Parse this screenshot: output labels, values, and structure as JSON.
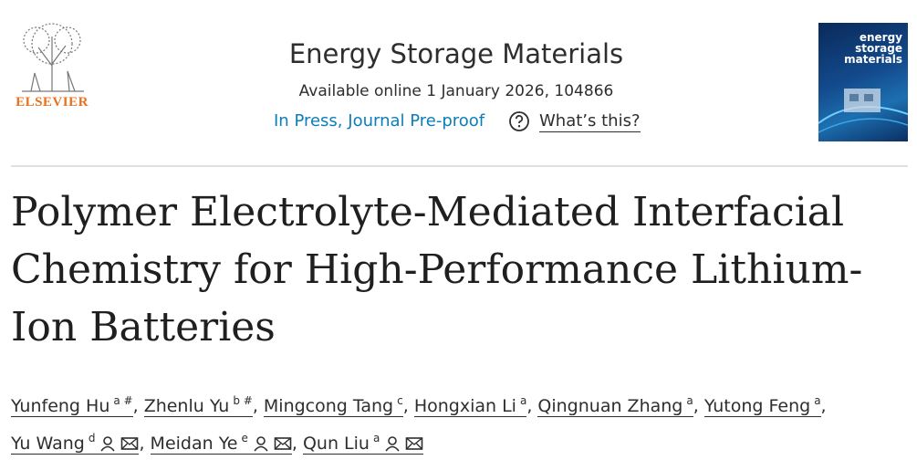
{
  "header": {
    "publisher": "ELSEVIER",
    "journal": "Energy Storage Materials",
    "available": "Available online 1 January 2026, 104866",
    "status": "In Press, Journal Pre-proof",
    "help": "What’s this?",
    "cover_title": "energy storage materials"
  },
  "article": {
    "title": "Polymer Electrolyte-Mediated Interfacial Chemistry for High-Performance Lithium-Ion Batteries",
    "separator": ",",
    "authors": [
      {
        "name": "Yunfeng Hu",
        "sup": "a #"
      },
      {
        "name": "Zhenlu Yu",
        "sup": "b #"
      },
      {
        "name": "Mingcong Tang",
        "sup": "c"
      },
      {
        "name": "Hongxian Li",
        "sup": "a"
      },
      {
        "name": "Qingnuan Zhang",
        "sup": "a"
      },
      {
        "name": "Yutong Feng",
        "sup": "a"
      },
      {
        "name": "Yu Wang",
        "sup": "d"
      },
      {
        "name": "Meidan Ye",
        "sup": "e"
      },
      {
        "name": "Qun Liu",
        "sup": "a"
      }
    ]
  }
}
